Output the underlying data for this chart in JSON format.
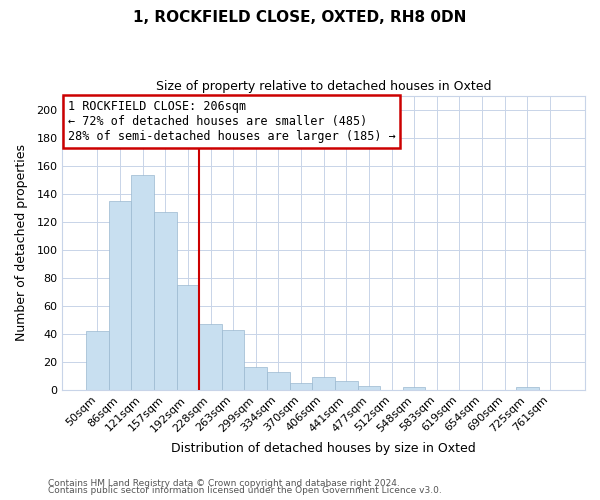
{
  "title": "1, ROCKFIELD CLOSE, OXTED, RH8 0DN",
  "subtitle": "Size of property relative to detached houses in Oxted",
  "xlabel": "Distribution of detached houses by size in Oxted",
  "ylabel": "Number of detached properties",
  "bar_labels": [
    "50sqm",
    "86sqm",
    "121sqm",
    "157sqm",
    "192sqm",
    "228sqm",
    "263sqm",
    "299sqm",
    "334sqm",
    "370sqm",
    "406sqm",
    "441sqm",
    "477sqm",
    "512sqm",
    "548sqm",
    "583sqm",
    "619sqm",
    "654sqm",
    "690sqm",
    "725sqm",
    "761sqm"
  ],
  "bar_heights": [
    42,
    135,
    153,
    127,
    75,
    47,
    43,
    16,
    13,
    5,
    9,
    6,
    3,
    0,
    2,
    0,
    0,
    0,
    0,
    2,
    0
  ],
  "bar_color": "#c8dff0",
  "bar_edge_color": "#9ab8d0",
  "vline_x": 4.5,
  "vline_color": "#cc0000",
  "ylim": [
    0,
    210
  ],
  "yticks": [
    0,
    20,
    40,
    60,
    80,
    100,
    120,
    140,
    160,
    180,
    200
  ],
  "annotation_title": "1 ROCKFIELD CLOSE: 206sqm",
  "annotation_line1": "← 72% of detached houses are smaller (485)",
  "annotation_line2": "28% of semi-detached houses are larger (185) →",
  "annotation_box_color": "#ffffff",
  "annotation_box_edge": "#cc0000",
  "footer1": "Contains HM Land Registry data © Crown copyright and database right 2024.",
  "footer2": "Contains public sector information licensed under the Open Government Licence v3.0.",
  "background_color": "#ffffff",
  "grid_color": "#c8d4e8"
}
